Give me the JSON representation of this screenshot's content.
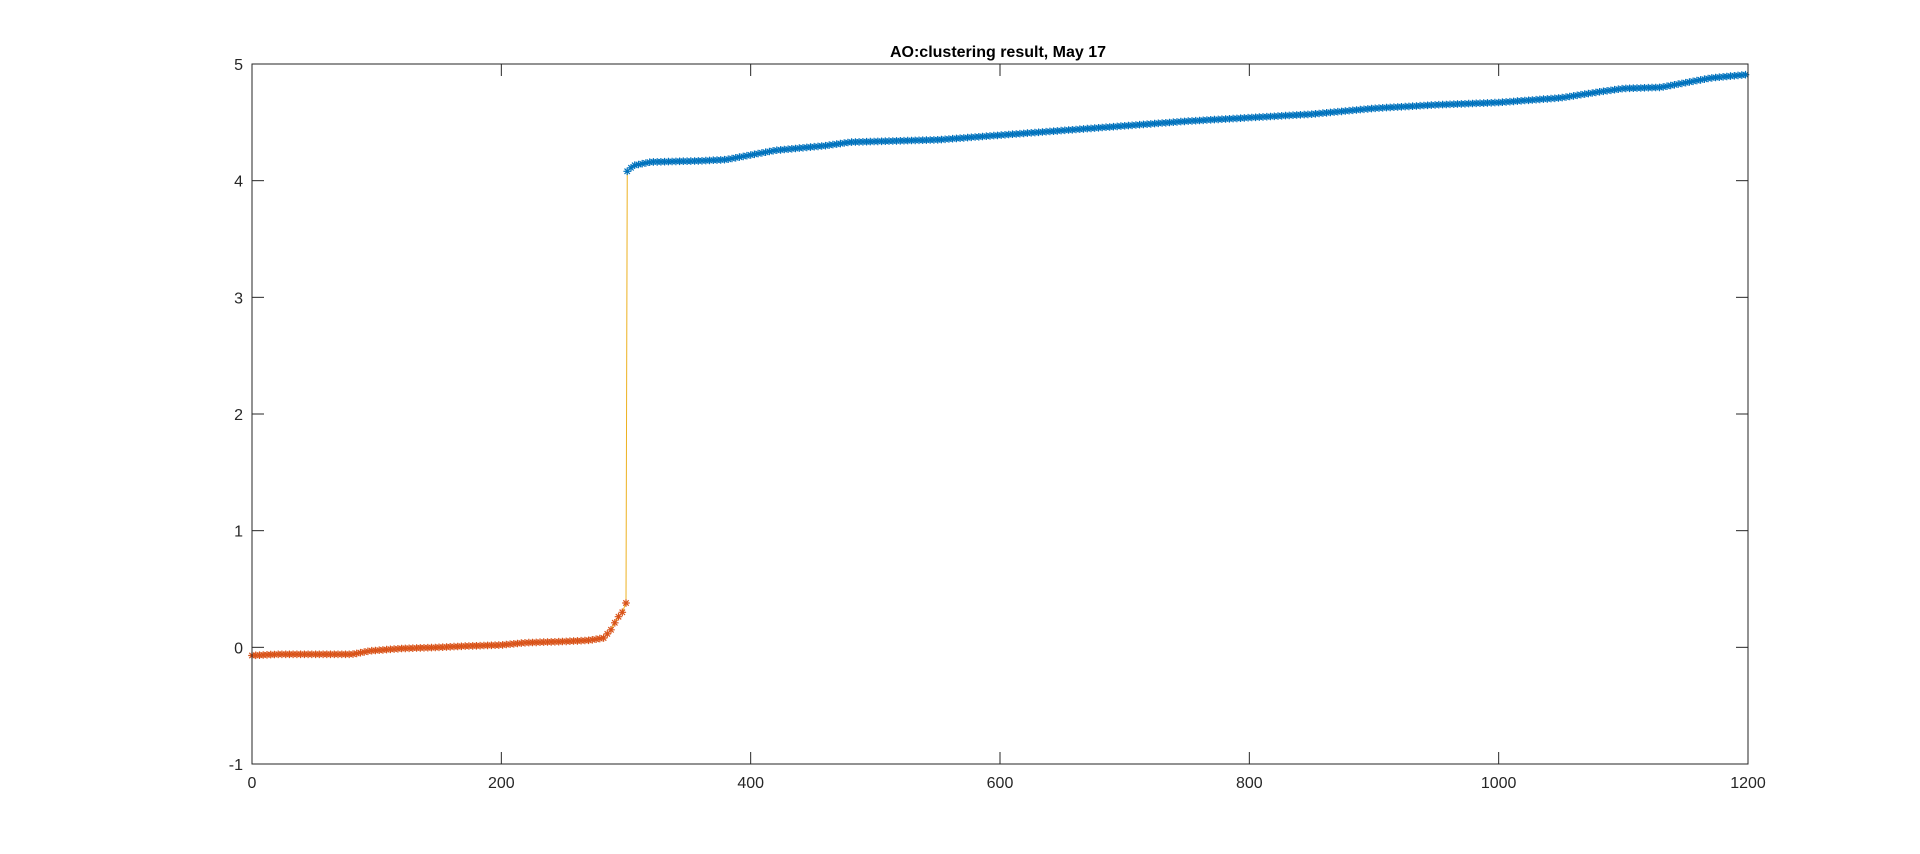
{
  "chart_data": {
    "type": "scatter",
    "title": "AO:clustering result, May 17",
    "xlabel": "",
    "ylabel": "",
    "xlim": [
      0,
      1200
    ],
    "ylim": [
      -1,
      5
    ],
    "x_ticks": [
      "0",
      "200",
      "400",
      "600",
      "800",
      "1000",
      "1200"
    ],
    "y_ticks": [
      "-1",
      "0",
      "1",
      "2",
      "3",
      "4",
      "5"
    ],
    "grid": false,
    "legend": "none",
    "connector_color": "#EDB120",
    "series": [
      {
        "color": "#D95319",
        "marker": "asterisk",
        "x_range": [
          0,
          300
        ],
        "curve_points": [
          [
            0,
            -0.07
          ],
          [
            20,
            -0.06
          ],
          [
            50,
            -0.06
          ],
          [
            80,
            -0.06
          ],
          [
            95,
            -0.03
          ],
          [
            120,
            -0.01
          ],
          [
            150,
            0.0
          ],
          [
            170,
            0.01
          ],
          [
            200,
            0.02
          ],
          [
            220,
            0.04
          ],
          [
            250,
            0.05
          ],
          [
            270,
            0.06
          ],
          [
            282,
            0.08
          ],
          [
            288,
            0.15
          ],
          [
            293,
            0.25
          ],
          [
            297,
            0.3
          ],
          [
            300,
            0.38
          ]
        ]
      },
      {
        "color": "#0072BD",
        "marker": "asterisk",
        "x_range": [
          301,
          1200
        ],
        "curve_points": [
          [
            301,
            4.08
          ],
          [
            306,
            4.13
          ],
          [
            320,
            4.16
          ],
          [
            360,
            4.17
          ],
          [
            380,
            4.18
          ],
          [
            400,
            4.22
          ],
          [
            420,
            4.26
          ],
          [
            460,
            4.3
          ],
          [
            480,
            4.33
          ],
          [
            550,
            4.35
          ],
          [
            600,
            4.39
          ],
          [
            650,
            4.43
          ],
          [
            700,
            4.47
          ],
          [
            750,
            4.51
          ],
          [
            800,
            4.54
          ],
          [
            850,
            4.57
          ],
          [
            900,
            4.62
          ],
          [
            950,
            4.65
          ],
          [
            1000,
            4.67
          ],
          [
            1050,
            4.71
          ],
          [
            1080,
            4.76
          ],
          [
            1100,
            4.79
          ],
          [
            1130,
            4.8
          ],
          [
            1150,
            4.84
          ],
          [
            1170,
            4.88
          ],
          [
            1190,
            4.9
          ],
          [
            1200,
            4.91
          ]
        ]
      }
    ]
  }
}
